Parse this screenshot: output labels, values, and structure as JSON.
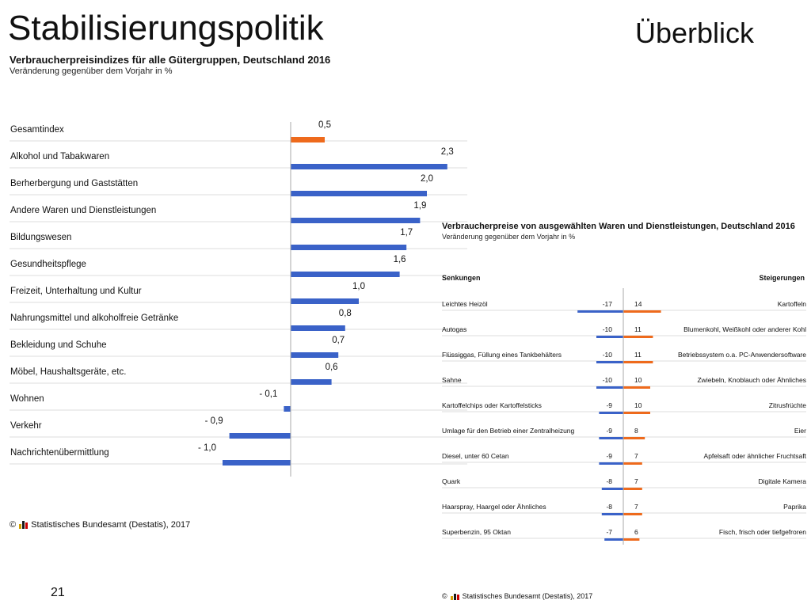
{
  "slide": {
    "title": "Stabilisierungspolitik",
    "subtitle": "Überblick",
    "page_number": "21"
  },
  "colors": {
    "blue": "#3a62c8",
    "orange": "#ee6a1c",
    "grid": "#dcdcdc",
    "axis": "#aaaaaa"
  },
  "chart_data": [
    {
      "type": "bar",
      "title": "Verbraucherpreisindizes für alle Gütergruppen, Deutschland 2016",
      "subtitle": "Veränderung gegenüber dem Vorjahr in %",
      "categories": [
        "Gesamtindex",
        "Alkohol und Tabakwaren",
        "Berherbergung und Gaststätten",
        "Andere Waren und Dienstleistungen",
        "Bildungswesen",
        "Gesundheitspflege",
        "Freizeit, Unterhaltung und Kultur",
        "Nahrungsmittel und alkoholfreie Getränke",
        "Bekleidung und Schuhe",
        "Möbel, Haushaltsgeräte, etc.",
        "Wohnen",
        "Verkehr",
        "Nachrichtenübermittlung"
      ],
      "values": [
        0.5,
        2.3,
        2.0,
        1.9,
        1.7,
        1.6,
        1.0,
        0.8,
        0.7,
        0.6,
        -0.1,
        -0.9,
        -1.0
      ],
      "value_labels": [
        "0,5",
        "2,3",
        "2,0",
        "1,9",
        "1,7",
        "1,6",
        "1,0",
        "0,8",
        "0,7",
        "0,6",
        "- 0,1",
        "- 0,9",
        "- 1,0"
      ],
      "highlight_index": 0,
      "source": "Statistisches Bundesamt (Destatis), 2017"
    },
    {
      "type": "bar",
      "title": "Verbraucherpreise von ausgewählten Waren und Dienstleistungen, Deutschland 2016",
      "subtitle": "Veränderung gegenüber dem Vorjahr in %",
      "left_header": "Senkungen",
      "right_header": "Steigerungen",
      "rows": [
        {
          "decrease_label": "Leichtes Heizöl",
          "decrease": -17,
          "increase_label": "Kartoffeln",
          "increase": 14
        },
        {
          "decrease_label": "Autogas",
          "decrease": -10,
          "increase_label": "Blumenkohl, Weißkohl oder anderer Kohl",
          "increase": 11
        },
        {
          "decrease_label": "Flüssiggas, Füllung eines Tankbehälters",
          "decrease": -10,
          "increase_label": "Betriebssystem o.a. PC-Anwendersoftware",
          "increase": 11
        },
        {
          "decrease_label": "Sahne",
          "decrease": -10,
          "increase_label": "Zwiebeln, Knoblauch oder Ähnliches",
          "increase": 10
        },
        {
          "decrease_label": "Kartoffelchips oder Kartoffelsticks",
          "decrease": -9,
          "increase_label": "Zitrusfrüchte",
          "increase": 10
        },
        {
          "decrease_label": "Umlage für den Betrieb einer Zentralheizung",
          "decrease": -9,
          "increase_label": "Eier",
          "increase": 8
        },
        {
          "decrease_label": "Diesel, unter 60 Cetan",
          "decrease": -9,
          "increase_label": "Apfelsaft oder ähnlicher Fruchtsaft",
          "increase": 7
        },
        {
          "decrease_label": "Quark",
          "decrease": -8,
          "increase_label": "Digitale Kamera",
          "increase": 7
        },
        {
          "decrease_label": "Haarspray, Haargel oder Ähnliches",
          "decrease": -8,
          "increase_label": "Paprika",
          "increase": 7
        },
        {
          "decrease_label": "Superbenzin, 95 Oktan",
          "decrease": -7,
          "increase_label": "Fisch, frisch oder tiefgefroren",
          "increase": 6
        }
      ],
      "source": "Statistisches Bundesamt (Destatis), 2017"
    }
  ]
}
